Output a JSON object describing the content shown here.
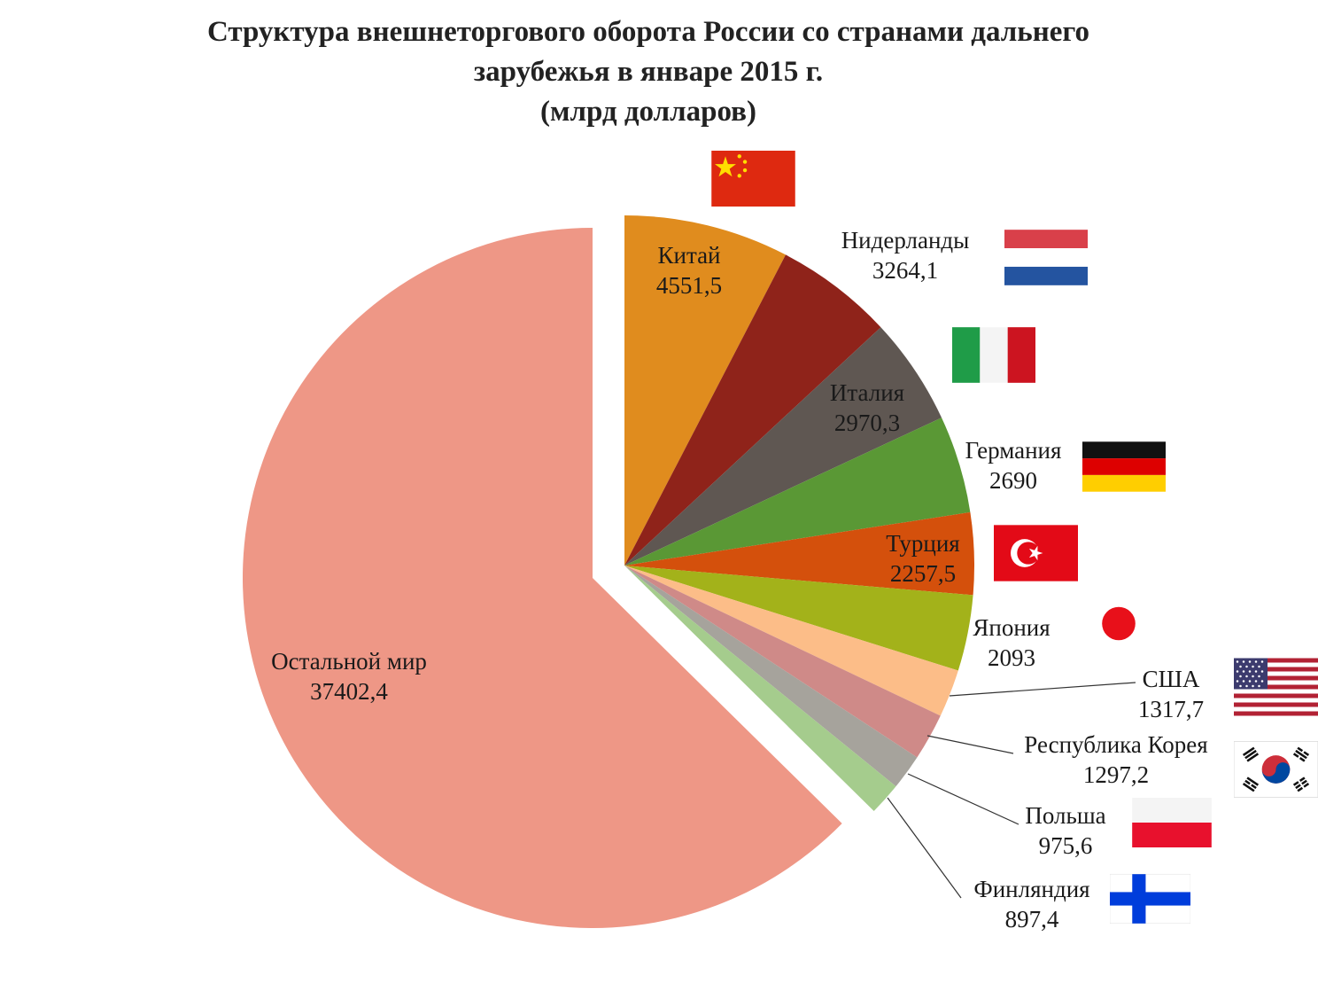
{
  "chart_data": {
    "type": "pie",
    "title_lines": [
      "Структура внешнеторгового оборота России со странами дальнего",
      "зарубежья в январе 2015 г.",
      "(млрд долларов)"
    ],
    "slices": [
      {
        "name": "Китай",
        "value_label": "4551,5",
        "value": 4551.5,
        "color": "#e08c1e"
      },
      {
        "name": "Нидерланды",
        "value_label": "3264,1",
        "value": 3264.1,
        "color": "#8f231a"
      },
      {
        "name": "Италия",
        "value_label": "2970,3",
        "value": 2970.3,
        "color": "#5f5752"
      },
      {
        "name": "Германия",
        "value_label": "2690",
        "value": 2690,
        "color": "#5a9835"
      },
      {
        "name": "Турция",
        "value_label": "2257,5",
        "value": 2257.5,
        "color": "#d4500c"
      },
      {
        "name": "Япония",
        "value_label": "2093",
        "value": 2093,
        "color": "#a3b21a"
      },
      {
        "name": "США",
        "value_label": "1317,7",
        "value": 1317.7,
        "color": "#fcbd88"
      },
      {
        "name": "Республика Корея",
        "value_label": "1297,2",
        "value": 1297.2,
        "color": "#cf8a88"
      },
      {
        "name": "Польша",
        "value_label": "975,6",
        "value": 975.6,
        "color": "#a6a39c"
      },
      {
        "name": "Финляндия",
        "value_label": "897,4",
        "value": 897.4,
        "color": "#a5cc8d"
      },
      {
        "name": "Остальной мир",
        "value_label": "37402,4",
        "value": 37402.4,
        "color": "#ee9786",
        "exploded": true
      }
    ]
  },
  "flags": [
    {
      "country": "Китай",
      "icon": "china-flag-icon"
    },
    {
      "country": "Нидерланды",
      "icon": "netherlands-flag-icon"
    },
    {
      "country": "Италия",
      "icon": "italy-flag-icon"
    },
    {
      "country": "Германия",
      "icon": "germany-flag-icon"
    },
    {
      "country": "Турция",
      "icon": "turkey-flag-icon"
    },
    {
      "country": "Япония",
      "icon": "japan-flag-icon"
    },
    {
      "country": "США",
      "icon": "usa-flag-icon"
    },
    {
      "country": "Республика Корея",
      "icon": "korea-flag-icon"
    },
    {
      "country": "Польша",
      "icon": "poland-flag-icon"
    },
    {
      "country": "Финляндия",
      "icon": "finland-flag-icon"
    }
  ]
}
